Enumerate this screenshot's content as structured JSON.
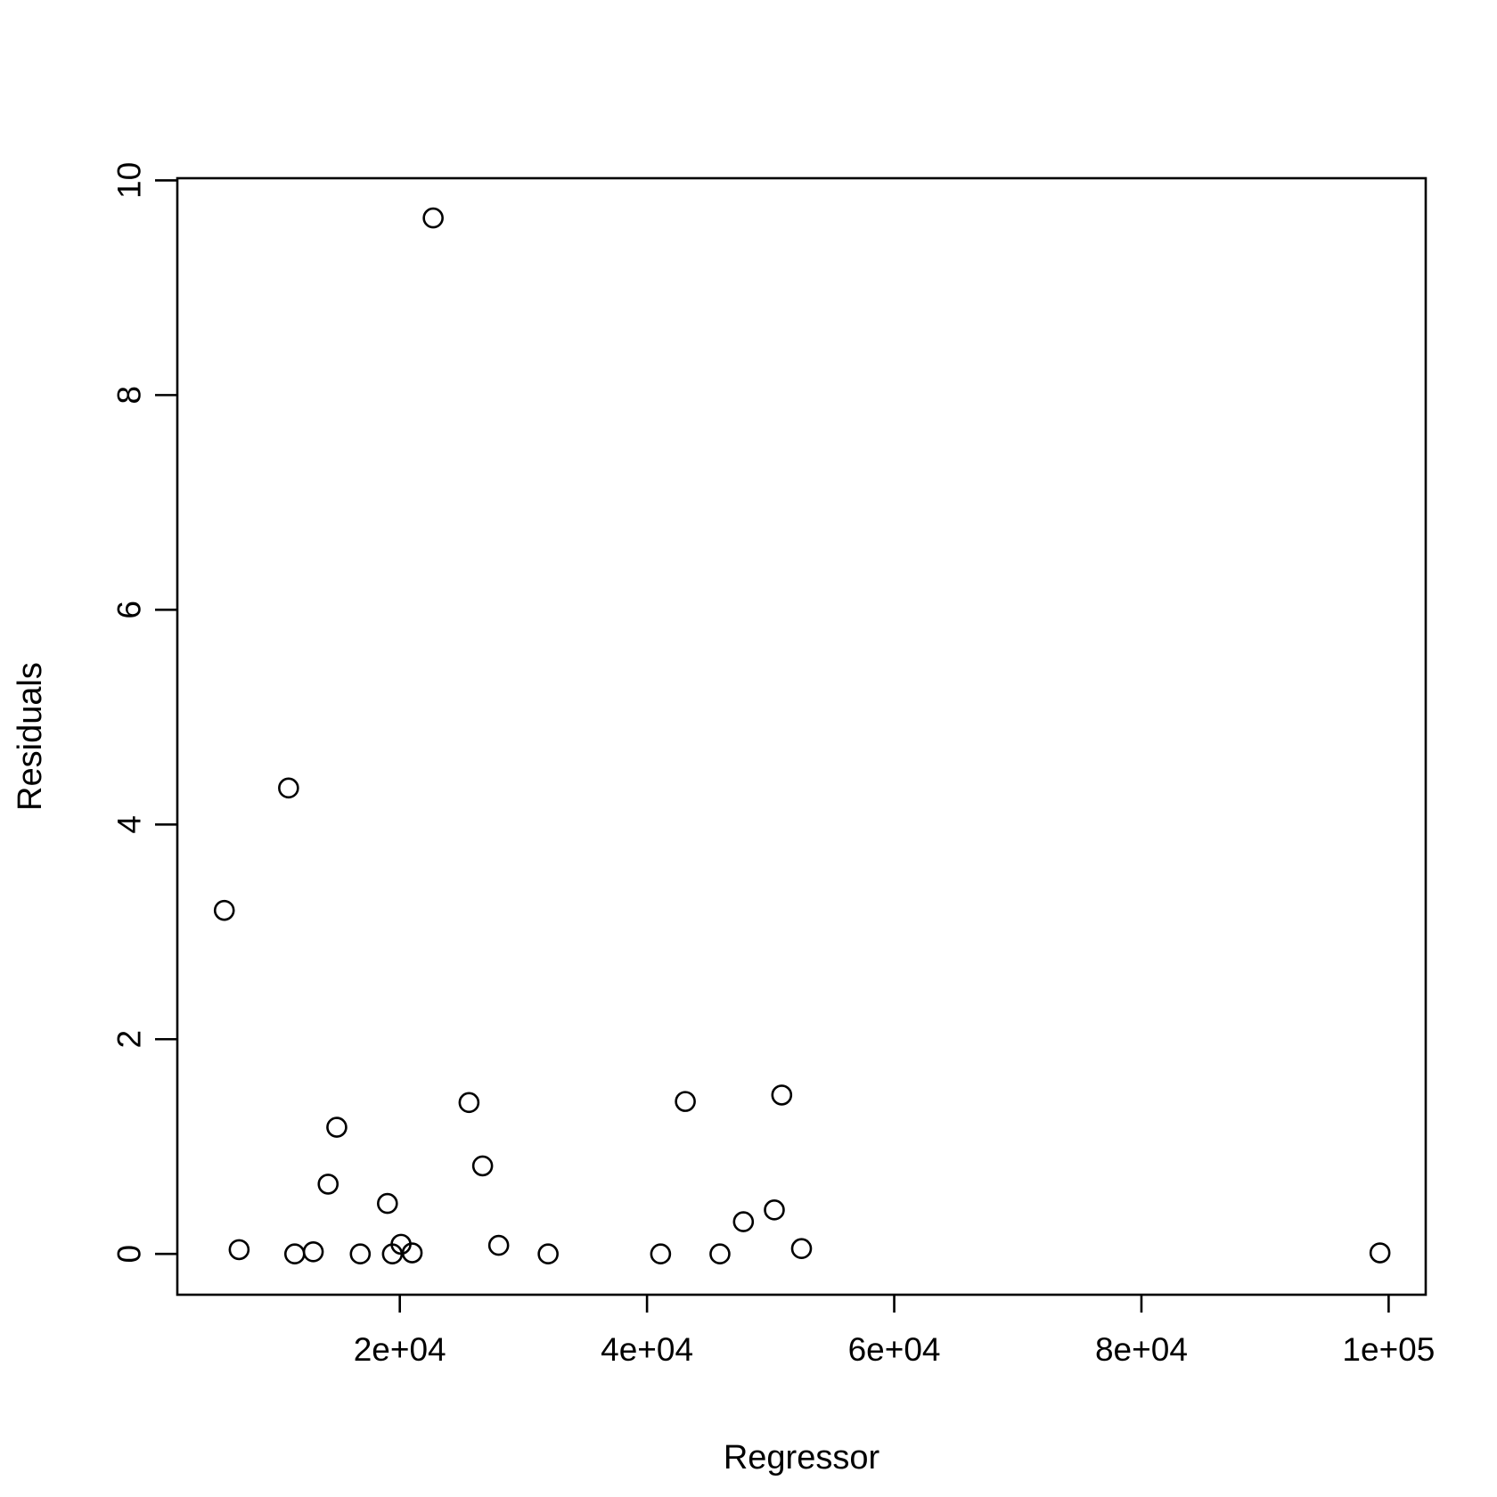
{
  "chart_data": {
    "type": "scatter",
    "title": "",
    "xlabel": "Regressor",
    "ylabel": "Residuals",
    "xlim": [
      2000,
      103000
    ],
    "ylim": [
      -0.38,
      10.02
    ],
    "xticks": [
      20000,
      40000,
      60000,
      80000,
      100000
    ],
    "xtick_labels": [
      "2e+04",
      "4e+04",
      "6e+04",
      "8e+04",
      "1e+05"
    ],
    "yticks": [
      0,
      2,
      4,
      6,
      8,
      10
    ],
    "ytick_labels": [
      "0",
      "2",
      "4",
      "6",
      "8",
      "10"
    ],
    "grid": false,
    "legend": "none",
    "marker": "open-circle",
    "color": "#000000",
    "points": [
      {
        "x": 5800,
        "y": 3.2
      },
      {
        "x": 7000,
        "y": 0.04
      },
      {
        "x": 11000,
        "y": 4.34
      },
      {
        "x": 11500,
        "y": 0.0
      },
      {
        "x": 13000,
        "y": 0.02
      },
      {
        "x": 14200,
        "y": 0.65
      },
      {
        "x": 14900,
        "y": 1.18
      },
      {
        "x": 16800,
        "y": 0.0
      },
      {
        "x": 19000,
        "y": 0.47
      },
      {
        "x": 19400,
        "y": 0.0
      },
      {
        "x": 20100,
        "y": 0.09
      },
      {
        "x": 21000,
        "y": 0.01
      },
      {
        "x": 22700,
        "y": 9.65
      },
      {
        "x": 25600,
        "y": 1.41
      },
      {
        "x": 26700,
        "y": 0.82
      },
      {
        "x": 28000,
        "y": 0.08
      },
      {
        "x": 32000,
        "y": 0.0
      },
      {
        "x": 41100,
        "y": 0.0
      },
      {
        "x": 43100,
        "y": 1.42
      },
      {
        "x": 45900,
        "y": 0.0
      },
      {
        "x": 47800,
        "y": 0.3
      },
      {
        "x": 50300,
        "y": 0.41
      },
      {
        "x": 50900,
        "y": 1.48
      },
      {
        "x": 52500,
        "y": 0.05
      },
      {
        "x": 99300,
        "y": 0.01
      }
    ]
  }
}
